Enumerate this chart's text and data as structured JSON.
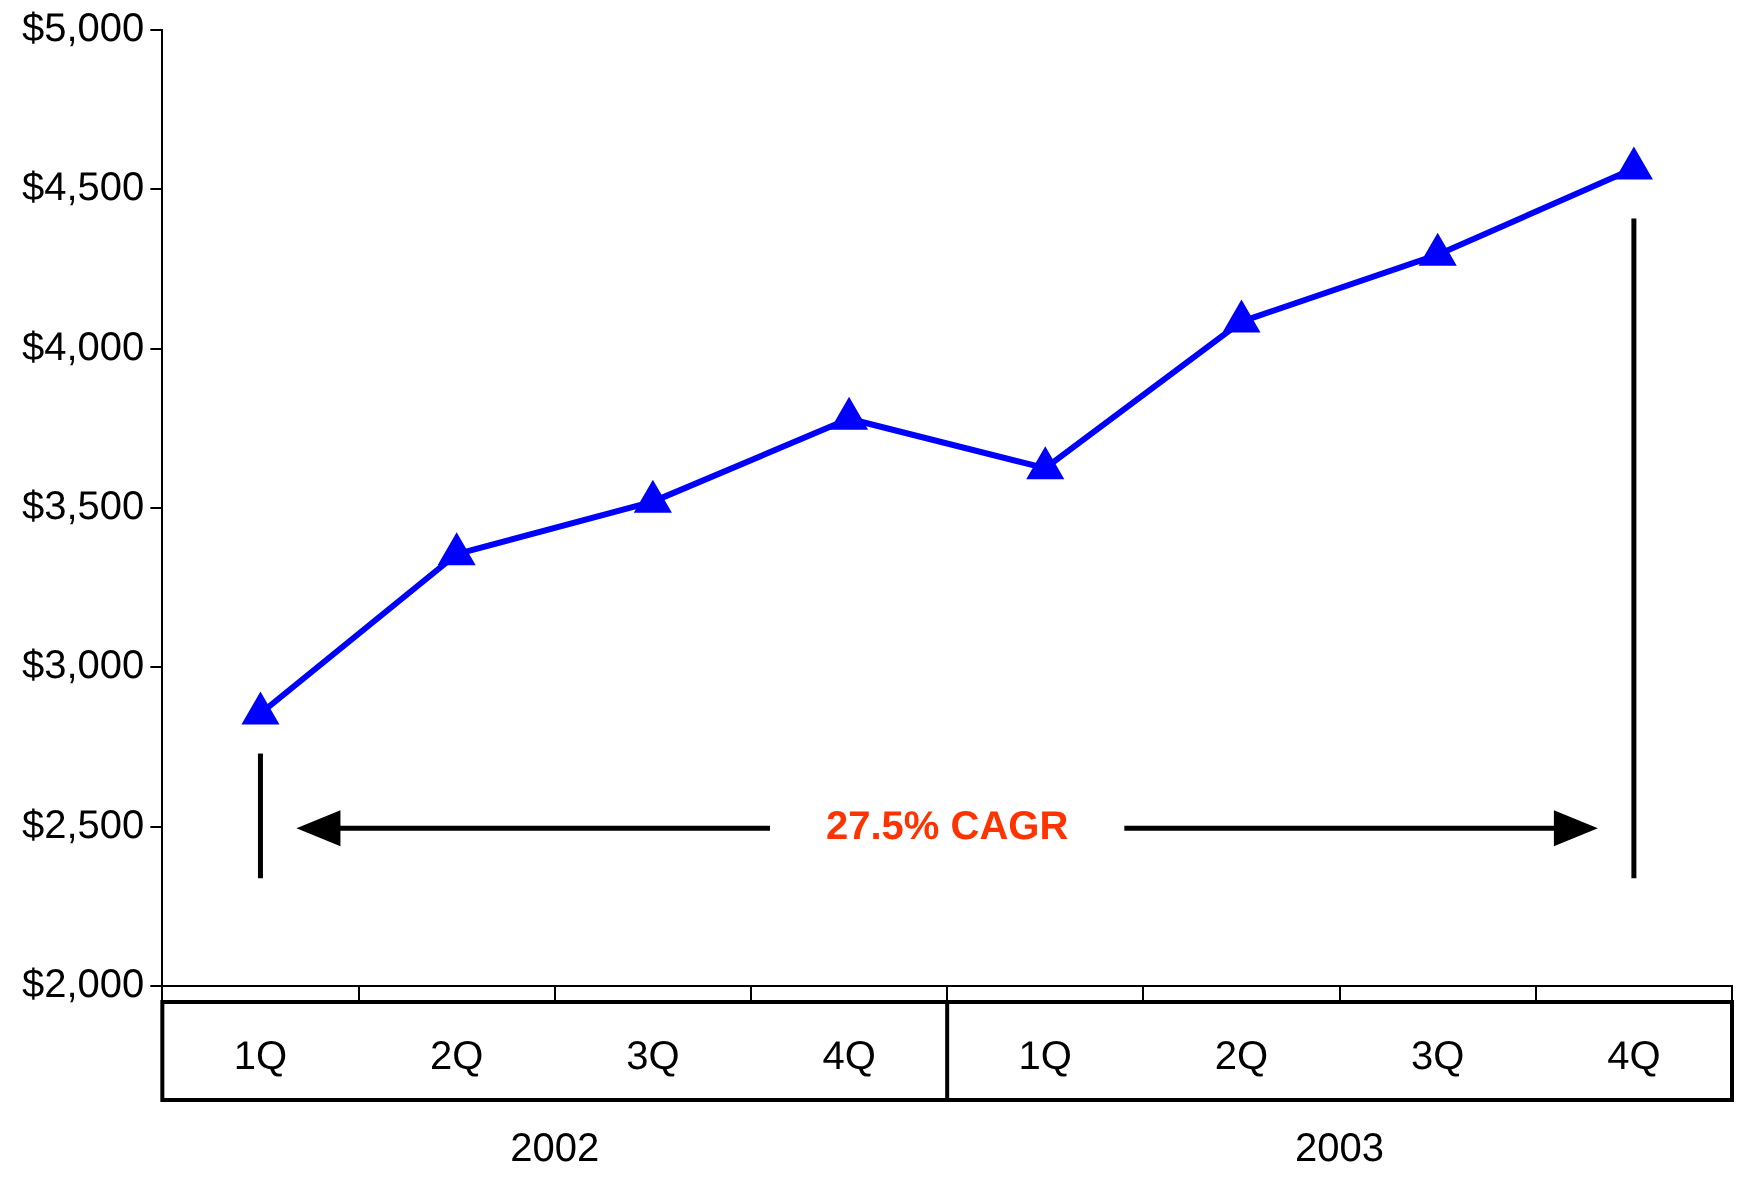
{
  "chart_data": {
    "type": "line",
    "categories": [
      "1Q",
      "2Q",
      "3Q",
      "4Q",
      "1Q",
      "2Q",
      "3Q",
      "4Q"
    ],
    "series": [
      {
        "color": "#0000ff",
        "values": [
          2855,
          3355,
          3520,
          3780,
          3625,
          4085,
          4295,
          4565
        ]
      }
    ],
    "ylim": [
      2000,
      5000
    ],
    "yticks": [
      {
        "value": 2000,
        "label": "$2,000"
      },
      {
        "value": 2500,
        "label": "$2,500"
      },
      {
        "value": 3000,
        "label": "$3,000"
      },
      {
        "value": 3500,
        "label": "$3,500"
      },
      {
        "value": 4000,
        "label": "$4,000"
      },
      {
        "value": 4500,
        "label": "$4,500"
      },
      {
        "value": 5000,
        "label": "$5,000"
      }
    ],
    "annotations": [
      "27.5% CAGR",
      "2002",
      "2003"
    ],
    "marker": "triangle",
    "line_style": "solid",
    "grid": false,
    "legend": false
  }
}
